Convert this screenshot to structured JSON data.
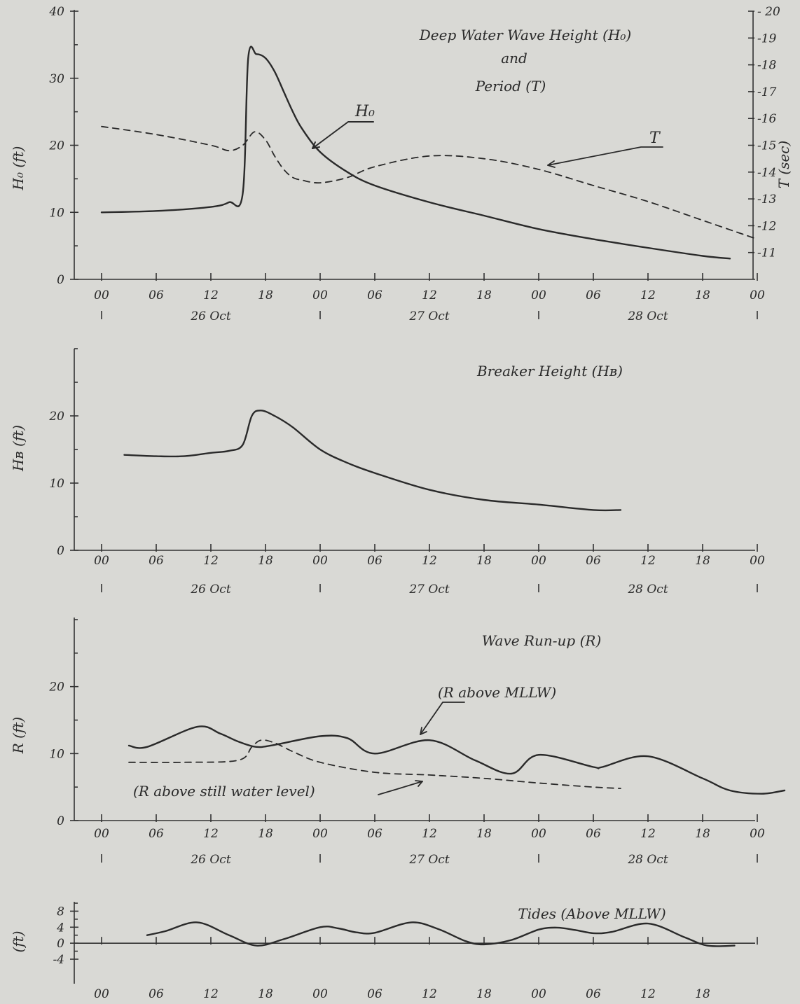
{
  "time_ticks": [
    "00",
    "06",
    "12",
    "18",
    "00",
    "06",
    "12",
    "18",
    "00",
    "06",
    "12",
    "18",
    "00"
  ],
  "day_labels": [
    "26 Oct",
    "27 Oct",
    "28 Oct"
  ],
  "chart_data": [
    {
      "type": "line",
      "title": "Deep Water Wave Height (H₀)",
      "title_lines": [
        "Deep Water Wave Height (H₀)",
        "and",
        "Period (T)"
      ],
      "ylabel": "H₀ (ft)",
      "ylabel_right": "T (sec)",
      "ylim": [
        0,
        40
      ],
      "ylim_right": [
        10,
        20
      ],
      "yticks": [
        0,
        10,
        20,
        30,
        40
      ],
      "yticks_right": [
        11,
        12,
        13,
        14,
        15,
        16,
        17,
        18,
        19,
        20
      ],
      "series": [
        {
          "name": "H₀",
          "axis": "left",
          "style": "solid",
          "x": [
            0,
            6,
            12,
            14,
            15.5,
            16.1,
            17,
            18,
            19,
            20,
            21,
            22,
            24,
            27,
            30,
            36,
            42,
            48,
            54,
            60,
            66,
            69
          ],
          "y": [
            10,
            10.2,
            10.8,
            11.5,
            12.8,
            33,
            33.6,
            33,
            31,
            28,
            25,
            22.5,
            19,
            16,
            14,
            11.5,
            9.5,
            7.5,
            6,
            4.7,
            3.5,
            3.1
          ]
        },
        {
          "name": "T",
          "axis": "right",
          "style": "dashed",
          "x": [
            0,
            6,
            12,
            14,
            15.5,
            16.8,
            18,
            19,
            20,
            21,
            22,
            24,
            27,
            30,
            36,
            42,
            48,
            54,
            60,
            66,
            72
          ],
          "y": [
            15.7,
            15.4,
            15,
            14.8,
            15,
            15.5,
            15.2,
            14.6,
            14.1,
            13.8,
            13.7,
            13.6,
            13.8,
            14.2,
            14.6,
            14.5,
            14.1,
            13.5,
            12.9,
            12.2,
            11.5
          ]
        }
      ]
    },
    {
      "type": "line",
      "title": "Breaker Height (Hʙ)",
      "ylabel": "Hʙ (ft)",
      "ylim": [
        0,
        30
      ],
      "yticks": [
        0,
        10,
        20
      ],
      "series": [
        {
          "name": "Hʙ",
          "style": "solid",
          "x": [
            2.5,
            6,
            9,
            12,
            14,
            15.5,
            16.5,
            17.5,
            19,
            21,
            24,
            27,
            30,
            36,
            42,
            48,
            54,
            57
          ],
          "y": [
            14.2,
            14,
            14,
            14.5,
            14.8,
            15.7,
            20,
            20.8,
            20,
            18.3,
            15,
            13,
            11.5,
            9,
            7.5,
            6.8,
            6,
            6
          ]
        }
      ]
    },
    {
      "type": "line",
      "title": "Wave Run-up (R)",
      "ylabel": "R (ft)",
      "ylim": [
        0,
        30
      ],
      "yticks": [
        0,
        10,
        20
      ],
      "series": [
        {
          "name": "R above MLLW",
          "style": "solid",
          "x": [
            3,
            5,
            10.5,
            13,
            15,
            17,
            19,
            24,
            27,
            30,
            36,
            41,
            45,
            48,
            54,
            55,
            60,
            66,
            69,
            72.5,
            75
          ],
          "y": [
            11.2,
            11,
            14,
            13,
            11.8,
            11,
            11.3,
            12.6,
            12.3,
            10,
            12,
            9,
            7,
            9.8,
            8,
            8,
            9.6,
            6.3,
            4.5,
            4,
            4.5
          ]
        },
        {
          "name": "R above still water level",
          "style": "dashed",
          "x": [
            3,
            9,
            15,
            16.5,
            17.5,
            19,
            21,
            24,
            30,
            36,
            42,
            48,
            54,
            57
          ],
          "y": [
            8.7,
            8.7,
            9,
            11,
            12,
            11.6,
            10.3,
            8.7,
            7.2,
            6.8,
            6.3,
            5.6,
            5,
            4.8
          ]
        }
      ]
    },
    {
      "type": "line",
      "title": "Tides (Above MLLW)",
      "ylabel": "(ft)",
      "ylim": [
        -4,
        10
      ],
      "yticks": [
        -4,
        0,
        4,
        8
      ],
      "series": [
        {
          "name": "Tides",
          "style": "solid",
          "x": [
            5,
            7,
            10.5,
            14,
            17,
            20,
            24,
            26,
            28,
            30,
            34,
            37,
            40,
            42,
            45,
            48,
            50,
            52,
            54,
            56,
            60,
            64,
            66.5,
            69.5
          ],
          "y": [
            2,
            3,
            5.2,
            2,
            -0.6,
            1,
            4,
            3.7,
            2.7,
            2.6,
            5.2,
            3.5,
            0.5,
            -0.3,
            0.8,
            3.4,
            3.9,
            3.3,
            2.5,
            2.8,
            4.9,
            1.5,
            -0.6,
            -0.6
          ]
        }
      ]
    }
  ],
  "annotations": {
    "ho": "H₀",
    "t": "T",
    "r_mllw": "(R above MLLW)",
    "r_swl": "(R above still water level)"
  }
}
